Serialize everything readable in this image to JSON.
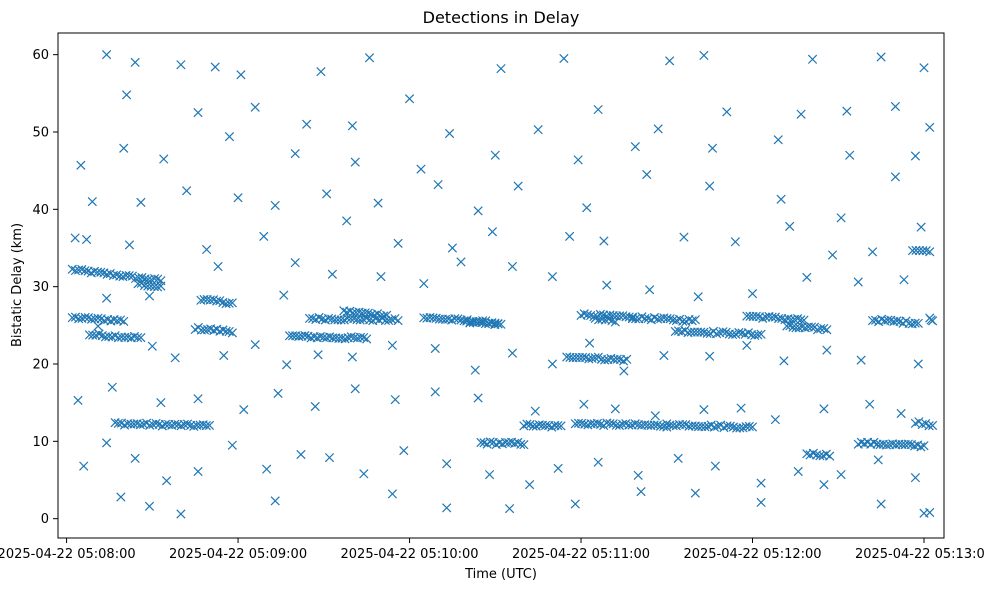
{
  "chart_data": {
    "type": "scatter",
    "title": "Detections in Delay",
    "xlabel": "Time (UTC)",
    "ylabel": "Bistatic Delay (km)",
    "marker": "x",
    "color": "#1f77b4",
    "grid": false,
    "x_tick_labels": [
      "2025-04-22 05:08:00",
      "2025-04-22 05:09:00",
      "2025-04-22 05:10:00",
      "2025-04-22 05:11:00",
      "2025-04-22 05:12:00",
      "2025-04-22 05:13:00"
    ],
    "y_tick_labels": [
      "0",
      "10",
      "20",
      "30",
      "40",
      "50",
      "60"
    ],
    "y_ticks": [
      0,
      10,
      20,
      30,
      40,
      50,
      60
    ],
    "xlim": [
      "2025-04-22 05:07:57",
      "2025-04-22 05:13:07"
    ],
    "ylim": [
      -2.5,
      62.8
    ],
    "series": [
      {
        "bands": [
          {
            "x_start": "2025-04-22 05:08:02",
            "x_end": "2025-04-22 05:08:33",
            "y_start": 32.2,
            "y_end": 30.8
          },
          {
            "x_start": "2025-04-22 05:08:25",
            "x_end": "2025-04-22 05:08:33",
            "y_start": 30.4,
            "y_end": 29.9
          },
          {
            "x_start": "2025-04-22 05:08:02",
            "x_end": "2025-04-22 05:08:20",
            "y_start": 26.0,
            "y_end": 25.6
          },
          {
            "x_start": "2025-04-22 05:08:08",
            "x_end": "2025-04-22 05:08:26",
            "y_start": 23.8,
            "y_end": 23.4
          },
          {
            "x_start": "2025-04-22 05:08:17",
            "x_end": "2025-04-22 05:08:50",
            "y_start": 12.3,
            "y_end": 12.0
          },
          {
            "x_start": "2025-04-22 05:08:45",
            "x_end": "2025-04-22 05:08:58",
            "y_start": 24.6,
            "y_end": 24.2
          },
          {
            "x_start": "2025-04-22 05:08:47",
            "x_end": "2025-04-22 05:08:58",
            "y_start": 28.3,
            "y_end": 27.9
          },
          {
            "x_start": "2025-04-22 05:09:18",
            "x_end": "2025-04-22 05:09:45",
            "y_start": 23.6,
            "y_end": 23.3
          },
          {
            "x_start": "2025-04-22 05:09:25",
            "x_end": "2025-04-22 05:09:56",
            "y_start": 25.9,
            "y_end": 25.7
          },
          {
            "x_start": "2025-04-22 05:09:37",
            "x_end": "2025-04-22 05:09:52",
            "y_start": 26.8,
            "y_end": 26.3
          },
          {
            "x_start": "2025-04-22 05:10:05",
            "x_end": "2025-04-22 05:10:31",
            "y_start": 26.0,
            "y_end": 25.3
          },
          {
            "x_start": "2025-04-22 05:10:20",
            "x_end": "2025-04-22 05:10:32",
            "y_start": 25.4,
            "y_end": 25.1
          },
          {
            "x_start": "2025-04-22 05:10:25",
            "x_end": "2025-04-22 05:10:40",
            "y_start": 9.8,
            "y_end": 9.7
          },
          {
            "x_start": "2025-04-22 05:10:40",
            "x_end": "2025-04-22 05:10:53",
            "y_start": 12.1,
            "y_end": 11.9
          },
          {
            "x_start": "2025-04-22 05:10:55",
            "x_end": "2025-04-22 05:11:16",
            "y_start": 21.0,
            "y_end": 20.5
          },
          {
            "x_start": "2025-04-22 05:10:58",
            "x_end": "2025-04-22 05:11:30",
            "y_start": 12.3,
            "y_end": 12.0
          },
          {
            "x_start": "2025-04-22 05:11:00",
            "x_end": "2025-04-22 05:11:18",
            "y_start": 26.4,
            "y_end": 26.0
          },
          {
            "x_start": "2025-04-22 05:11:05",
            "x_end": "2025-04-22 05:11:12",
            "y_start": 25.8,
            "y_end": 25.6
          },
          {
            "x_start": "2025-04-22 05:11:18",
            "x_end": "2025-04-22 05:11:40",
            "y_start": 26.0,
            "y_end": 25.6
          },
          {
            "x_start": "2025-04-22 05:11:30",
            "x_end": "2025-04-22 05:12:00",
            "y_start": 12.2,
            "y_end": 11.8
          },
          {
            "x_start": "2025-04-22 05:11:33",
            "x_end": "2025-04-22 05:12:03",
            "y_start": 24.3,
            "y_end": 23.8
          },
          {
            "x_start": "2025-04-22 05:11:58",
            "x_end": "2025-04-22 05:12:18",
            "y_start": 26.2,
            "y_end": 25.7
          },
          {
            "x_start": "2025-04-22 05:12:12",
            "x_end": "2025-04-22 05:12:26",
            "y_start": 24.8,
            "y_end": 24.5
          },
          {
            "x_start": "2025-04-22 05:12:19",
            "x_end": "2025-04-22 05:12:27",
            "y_start": 8.4,
            "y_end": 8.2
          },
          {
            "x_start": "2025-04-22 05:12:37",
            "x_end": "2025-04-22 05:13:00",
            "y_start": 9.8,
            "y_end": 9.4
          },
          {
            "x_start": "2025-04-22 05:12:42",
            "x_end": "2025-04-22 05:12:58",
            "y_start": 25.7,
            "y_end": 25.3
          },
          {
            "x_start": "2025-04-22 05:12:56",
            "x_end": "2025-04-22 05:13:02",
            "y_start": 34.8,
            "y_end": 34.5
          },
          {
            "x_start": "2025-04-22 05:12:57",
            "x_end": "2025-04-22 05:13:03",
            "y_start": 12.5,
            "y_end": 12.1
          },
          {
            "x_start": "2025-04-22 05:13:02",
            "x_end": "2025-04-22 05:13:03",
            "y_start": 26.0,
            "y_end": 25.7
          }
        ],
        "points": [
          [
            "2025-04-22 05:08:14",
            60.0
          ],
          [
            "2025-04-22 05:08:24",
            59.0
          ],
          [
            "2025-04-22 05:08:40",
            58.7
          ],
          [
            "2025-04-22 05:08:52",
            58.4
          ],
          [
            "2025-04-22 05:09:01",
            57.4
          ],
          [
            "2025-04-22 05:09:29",
            57.8
          ],
          [
            "2025-04-22 05:09:46",
            59.6
          ],
          [
            "2025-04-22 05:10:32",
            58.2
          ],
          [
            "2025-04-22 05:10:54",
            59.5
          ],
          [
            "2025-04-22 05:11:31",
            59.2
          ],
          [
            "2025-04-22 05:11:43",
            59.9
          ],
          [
            "2025-04-22 05:12:21",
            59.4
          ],
          [
            "2025-04-22 05:12:45",
            59.7
          ],
          [
            "2025-04-22 05:13:00",
            58.3
          ],
          [
            "2025-04-22 05:08:21",
            54.8
          ],
          [
            "2025-04-22 05:08:46",
            52.5
          ],
          [
            "2025-04-22 05:09:06",
            53.2
          ],
          [
            "2025-04-22 05:09:24",
            51.0
          ],
          [
            "2025-04-22 05:09:40",
            50.8
          ],
          [
            "2025-04-22 05:10:00",
            54.3
          ],
          [
            "2025-04-22 05:10:14",
            49.8
          ],
          [
            "2025-04-22 05:10:45",
            50.3
          ],
          [
            "2025-04-22 05:11:06",
            52.9
          ],
          [
            "2025-04-22 05:11:27",
            50.4
          ],
          [
            "2025-04-22 05:11:51",
            52.6
          ],
          [
            "2025-04-22 05:12:17",
            52.3
          ],
          [
            "2025-04-22 05:12:33",
            52.7
          ],
          [
            "2025-04-22 05:12:50",
            53.3
          ],
          [
            "2025-04-22 05:13:02",
            50.6
          ],
          [
            "2025-04-22 05:08:05",
            45.7
          ],
          [
            "2025-04-22 05:08:09",
            41.0
          ],
          [
            "2025-04-22 05:08:26",
            40.9
          ],
          [
            "2025-04-22 05:08:42",
            42.4
          ],
          [
            "2025-04-22 05:09:00",
            41.5
          ],
          [
            "2025-04-22 05:09:13",
            40.5
          ],
          [
            "2025-04-22 05:09:31",
            42.0
          ],
          [
            "2025-04-22 05:09:49",
            40.8
          ],
          [
            "2025-04-22 05:10:10",
            43.2
          ],
          [
            "2025-04-22 05:10:24",
            39.8
          ],
          [
            "2025-04-22 05:10:38",
            43.0
          ],
          [
            "2025-04-22 05:11:02",
            40.2
          ],
          [
            "2025-04-22 05:11:23",
            44.5
          ],
          [
            "2025-04-22 05:11:45",
            43.0
          ],
          [
            "2025-04-22 05:12:10",
            41.3
          ],
          [
            "2025-04-22 05:12:31",
            38.9
          ],
          [
            "2025-04-22 05:12:50",
            44.2
          ],
          [
            "2025-04-22 05:08:07",
            36.1
          ],
          [
            "2025-04-22 05:08:22",
            35.4
          ],
          [
            "2025-04-22 05:08:49",
            34.8
          ],
          [
            "2025-04-22 05:09:09",
            36.5
          ],
          [
            "2025-04-22 05:09:20",
            33.1
          ],
          [
            "2025-04-22 05:09:38",
            38.5
          ],
          [
            "2025-04-22 05:09:56",
            35.6
          ],
          [
            "2025-04-22 05:10:15",
            35.0
          ],
          [
            "2025-04-22 05:10:29",
            37.1
          ],
          [
            "2025-04-22 05:10:56",
            36.5
          ],
          [
            "2025-04-22 05:11:08",
            35.9
          ],
          [
            "2025-04-22 05:11:36",
            36.4
          ],
          [
            "2025-04-22 05:11:54",
            35.8
          ],
          [
            "2025-04-22 05:12:13",
            37.8
          ],
          [
            "2025-04-22 05:12:28",
            34.1
          ],
          [
            "2025-04-22 05:12:42",
            34.5
          ],
          [
            "2025-04-22 05:12:59",
            37.7
          ],
          [
            "2025-04-22 05:08:03",
            36.3
          ],
          [
            "2025-04-22 05:08:14",
            28.5
          ],
          [
            "2025-04-22 05:08:29",
            28.8
          ],
          [
            "2025-04-22 05:08:53",
            32.6
          ],
          [
            "2025-04-22 05:09:16",
            28.9
          ],
          [
            "2025-04-22 05:09:33",
            31.6
          ],
          [
            "2025-04-22 05:09:50",
            31.3
          ],
          [
            "2025-04-22 05:10:05",
            30.4
          ],
          [
            "2025-04-22 05:10:18",
            33.2
          ],
          [
            "2025-04-22 05:10:36",
            32.6
          ],
          [
            "2025-04-22 05:10:50",
            31.3
          ],
          [
            "2025-04-22 05:11:09",
            30.2
          ],
          [
            "2025-04-22 05:11:24",
            29.6
          ],
          [
            "2025-04-22 05:11:41",
            28.7
          ],
          [
            "2025-04-22 05:12:00",
            29.1
          ],
          [
            "2025-04-22 05:12:19",
            31.2
          ],
          [
            "2025-04-22 05:12:37",
            30.6
          ],
          [
            "2025-04-22 05:12:53",
            30.9
          ],
          [
            "2025-04-22 05:08:11",
            24.9
          ],
          [
            "2025-04-22 05:08:30",
            22.3
          ],
          [
            "2025-04-22 05:08:38",
            20.8
          ],
          [
            "2025-04-22 05:08:55",
            21.1
          ],
          [
            "2025-04-22 05:09:06",
            22.5
          ],
          [
            "2025-04-22 05:09:17",
            19.9
          ],
          [
            "2025-04-22 05:09:28",
            21.2
          ],
          [
            "2025-04-22 05:09:40",
            20.9
          ],
          [
            "2025-04-22 05:09:54",
            22.4
          ],
          [
            "2025-04-22 05:10:09",
            22.0
          ],
          [
            "2025-04-22 05:10:23",
            19.2
          ],
          [
            "2025-04-22 05:10:36",
            21.4
          ],
          [
            "2025-04-22 05:10:50",
            20.0
          ],
          [
            "2025-04-22 05:11:03",
            22.7
          ],
          [
            "2025-04-22 05:11:15",
            19.1
          ],
          [
            "2025-04-22 05:11:29",
            21.1
          ],
          [
            "2025-04-22 05:11:45",
            21.0
          ],
          [
            "2025-04-22 05:11:58",
            22.4
          ],
          [
            "2025-04-22 05:12:11",
            20.4
          ],
          [
            "2025-04-22 05:12:26",
            21.8
          ],
          [
            "2025-04-22 05:12:38",
            20.5
          ],
          [
            "2025-04-22 05:12:58",
            20.0
          ],
          [
            "2025-04-22 05:08:04",
            15.3
          ],
          [
            "2025-04-22 05:08:16",
            17.0
          ],
          [
            "2025-04-22 05:08:33",
            15.0
          ],
          [
            "2025-04-22 05:08:46",
            15.5
          ],
          [
            "2025-04-22 05:09:02",
            14.1
          ],
          [
            "2025-04-22 05:09:14",
            16.2
          ],
          [
            "2025-04-22 05:09:27",
            14.5
          ],
          [
            "2025-04-22 05:09:41",
            16.8
          ],
          [
            "2025-04-22 05:09:55",
            15.4
          ],
          [
            "2025-04-22 05:10:09",
            16.4
          ],
          [
            "2025-04-22 05:10:24",
            15.6
          ],
          [
            "2025-04-22 05:10:44",
            13.9
          ],
          [
            "2025-04-22 05:11:01",
            14.8
          ],
          [
            "2025-04-22 05:11:12",
            14.2
          ],
          [
            "2025-04-22 05:11:26",
            13.3
          ],
          [
            "2025-04-22 05:11:43",
            14.1
          ],
          [
            "2025-04-22 05:11:56",
            14.3
          ],
          [
            "2025-04-22 05:12:08",
            12.8
          ],
          [
            "2025-04-22 05:12:25",
            14.2
          ],
          [
            "2025-04-22 05:12:41",
            14.8
          ],
          [
            "2025-04-22 05:12:52",
            13.6
          ],
          [
            "2025-04-22 05:08:06",
            6.8
          ],
          [
            "2025-04-22 05:08:14",
            9.8
          ],
          [
            "2025-04-22 05:08:24",
            7.8
          ],
          [
            "2025-04-22 05:08:35",
            4.9
          ],
          [
            "2025-04-22 05:08:46",
            6.1
          ],
          [
            "2025-04-22 05:08:58",
            9.5
          ],
          [
            "2025-04-22 05:09:10",
            6.4
          ],
          [
            "2025-04-22 05:09:22",
            8.3
          ],
          [
            "2025-04-22 05:09:32",
            7.9
          ],
          [
            "2025-04-22 05:09:44",
            5.8
          ],
          [
            "2025-04-22 05:09:58",
            8.8
          ],
          [
            "2025-04-22 05:10:13",
            7.1
          ],
          [
            "2025-04-22 05:10:28",
            5.7
          ],
          [
            "2025-04-22 05:10:42",
            4.4
          ],
          [
            "2025-04-22 05:10:52",
            6.5
          ],
          [
            "2025-04-22 05:11:06",
            7.3
          ],
          [
            "2025-04-22 05:11:20",
            5.6
          ],
          [
            "2025-04-22 05:11:34",
            7.8
          ],
          [
            "2025-04-22 05:11:47",
            6.8
          ],
          [
            "2025-04-22 05:12:03",
            4.6
          ],
          [
            "2025-04-22 05:12:16",
            6.1
          ],
          [
            "2025-04-22 05:12:31",
            5.7
          ],
          [
            "2025-04-22 05:12:44",
            7.6
          ],
          [
            "2025-04-22 05:12:57",
            5.3
          ],
          [
            "2025-04-22 05:08:19",
            2.8
          ],
          [
            "2025-04-22 05:08:29",
            1.6
          ],
          [
            "2025-04-22 05:08:40",
            0.6
          ],
          [
            "2025-04-22 05:09:13",
            2.3
          ],
          [
            "2025-04-22 05:09:54",
            3.2
          ],
          [
            "2025-04-22 05:10:13",
            1.4
          ],
          [
            "2025-04-22 05:10:35",
            1.3
          ],
          [
            "2025-04-22 05:10:58",
            1.9
          ],
          [
            "2025-04-22 05:11:21",
            3.5
          ],
          [
            "2025-04-22 05:11:40",
            3.3
          ],
          [
            "2025-04-22 05:12:03",
            2.1
          ],
          [
            "2025-04-22 05:12:25",
            4.4
          ],
          [
            "2025-04-22 05:12:45",
            1.9
          ],
          [
            "2025-04-22 05:13:00",
            0.7
          ],
          [
            "2025-04-22 05:13:02",
            0.8
          ],
          [
            "2025-04-22 05:08:20",
            47.9
          ],
          [
            "2025-04-22 05:08:34",
            46.5
          ],
          [
            "2025-04-22 05:08:57",
            49.4
          ],
          [
            "2025-04-22 05:09:20",
            47.2
          ],
          [
            "2025-04-22 05:09:41",
            46.1
          ],
          [
            "2025-04-22 05:10:04",
            45.2
          ],
          [
            "2025-04-22 05:10:30",
            47.0
          ],
          [
            "2025-04-22 05:10:59",
            46.4
          ],
          [
            "2025-04-22 05:11:19",
            48.1
          ],
          [
            "2025-04-22 05:11:46",
            47.9
          ],
          [
            "2025-04-22 05:12:09",
            49.0
          ],
          [
            "2025-04-22 05:12:34",
            47.0
          ],
          [
            "2025-04-22 05:12:57",
            46.9
          ]
        ]
      }
    ]
  }
}
